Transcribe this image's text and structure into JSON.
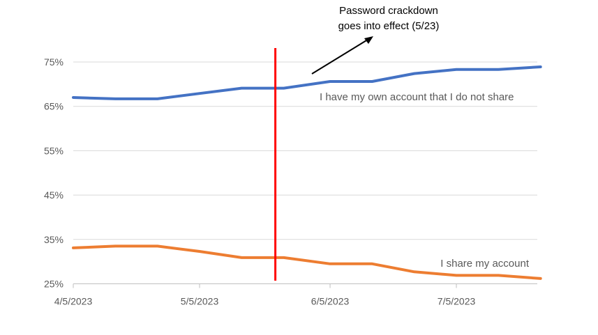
{
  "chart_data": {
    "type": "line",
    "x": [
      "4/5/2023",
      "4/15/2023",
      "4/25/2023",
      "5/5/2023",
      "5/15/2023",
      "5/25/2023",
      "6/5/2023",
      "6/15/2023",
      "6/25/2023",
      "7/5/2023",
      "7/15/2023",
      "7/25/2023"
    ],
    "x_ticks": [
      "4/5/2023",
      "5/5/2023",
      "6/5/2023",
      "7/5/2023"
    ],
    "y_ticks": [
      "25%",
      "35%",
      "45%",
      "55%",
      "65%",
      "75%"
    ],
    "ylim": [
      25,
      78
    ],
    "grid": true,
    "series": [
      {
        "name": "I have my own account that I do not share",
        "color": "#4472C4",
        "values": [
          67.0,
          66.7,
          66.7,
          67.9,
          69.1,
          69.1,
          70.6,
          70.6,
          72.4,
          73.3,
          73.3,
          73.9
        ]
      },
      {
        "name": "I share my account",
        "color": "#ED7D31",
        "values": [
          33.1,
          33.5,
          33.5,
          32.3,
          30.9,
          30.9,
          29.5,
          29.5,
          27.7,
          26.9,
          26.9,
          26.2
        ]
      }
    ],
    "marker": {
      "date": "5/23/2023",
      "color": "#FF0000",
      "annotation_line1": "Password crackdown",
      "annotation_line2": "goes into effect (5/23)"
    }
  }
}
